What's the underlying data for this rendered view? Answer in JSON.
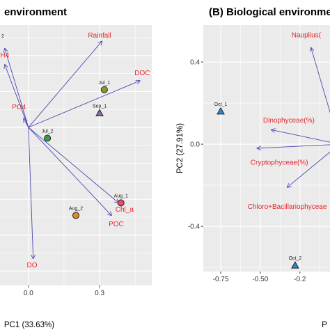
{
  "colors": {
    "panel_bg": "#ebebeb",
    "grid": "#ffffff",
    "arrow": "#4a4ab0",
    "vector_label": "#e8262b",
    "point_outline": "#222222"
  },
  "chart_data": [
    {
      "type": "scatter",
      "subtype": "pca-biplot",
      "title": "environment",
      "xlabel": "PC1 (33.63%)",
      "ylabel": "",
      "xticks": [
        0.0,
        0.3
      ],
      "xtick_labels": [
        "0.0",
        "0.3"
      ],
      "yticks": [],
      "xlim": [
        -0.12,
        0.52
      ],
      "ylim": [
        -0.88,
        0.57
      ],
      "grid": true,
      "legend": "none",
      "vectors": [
        {
          "label": "Rainfall",
          "x": 0.31,
          "y": 0.48,
          "label_x": 0.3,
          "label_y": 0.5
        },
        {
          "label": "DOC",
          "x": 0.47,
          "y": 0.26,
          "label_x": 0.48,
          "label_y": 0.29
        },
        {
          "label": "Chl_a",
          "x": 0.38,
          "y": -0.42,
          "label_x": 0.405,
          "label_y": -0.47
        },
        {
          "label": "POC",
          "x": 0.35,
          "y": -0.49,
          "label_x": 0.37,
          "label_y": -0.55
        },
        {
          "label": "DO",
          "x": 0.02,
          "y": -0.73,
          "label_x": 0.015,
          "label_y": -0.78
        },
        {
          "label": "PO4",
          "x": -0.02,
          "y": 0.05,
          "label_x": -0.04,
          "label_y": 0.1
        },
        {
          "label": "H4",
          "x": -0.1,
          "y": 0.35,
          "label_x": -0.1,
          "label_y": 0.39
        },
        {
          "label": "",
          "x": -0.1,
          "y": 0.44,
          "label_x": -0.1,
          "label_y": 0.48
        }
      ],
      "points": [
        {
          "label": "Jul_1",
          "x": 0.32,
          "y": 0.21,
          "shape": "circle",
          "color": "#8a9a28"
        },
        {
          "label": "Sep_1",
          "x": 0.3,
          "y": 0.08,
          "shape": "triangle",
          "color": "#8a6aa8"
        },
        {
          "label": "Jul_2",
          "x": 0.08,
          "y": -0.06,
          "shape": "circle",
          "color": "#3a9a48"
        },
        {
          "label": "Aug_1",
          "x": 0.39,
          "y": -0.42,
          "shape": "circle",
          "color": "#e84a6a"
        },
        {
          "label": "Aug_2",
          "x": 0.2,
          "y": -0.49,
          "shape": "circle",
          "color": "#e08a28"
        }
      ],
      "fragments": [
        "2",
        "0.3"
      ]
    },
    {
      "type": "scatter",
      "subtype": "pca-biplot",
      "title": "(B) Biological environme",
      "xlabel": "P",
      "ylabel": "PC2 (27.91%)",
      "xticks": [
        -0.75,
        -0.5,
        -0.25
      ],
      "xtick_labels": [
        "-0.75",
        "-0.50",
        "-0.2"
      ],
      "yticks": [
        0.4,
        0.0,
        -0.4
      ],
      "ytick_labels": [
        "0.4",
        "0.0",
        "-0.4"
      ],
      "xlim": [
        -0.86,
        -0.06
      ],
      "ylim": [
        -0.62,
        0.58
      ],
      "grid": true,
      "legend": "none",
      "vectors": [
        {
          "label": "Nauplius(",
          "x": -0.18,
          "y": 0.47,
          "label_x": -0.21,
          "label_y": 0.52
        },
        {
          "label": "Dinophyceae(%)",
          "x": -0.43,
          "y": 0.07,
          "label_x": -0.32,
          "label_y": 0.105
        },
        {
          "label": "Cryptophyceae(%)",
          "x": -0.52,
          "y": -0.02,
          "label_x": -0.38,
          "label_y": -0.1
        },
        {
          "label": "Chloro+Bacillariophyceae",
          "x": -0.33,
          "y": -0.21,
          "label_x": -0.33,
          "label_y": -0.315
        }
      ],
      "points": [
        {
          "label": "Oct_1",
          "x": -0.75,
          "y": 0.16,
          "shape": "triangle",
          "color": "#2a8ad0"
        },
        {
          "label": "Oct_2",
          "x": -0.28,
          "y": -0.59,
          "shape": "triangle",
          "color": "#2a8ad0"
        }
      ]
    }
  ]
}
